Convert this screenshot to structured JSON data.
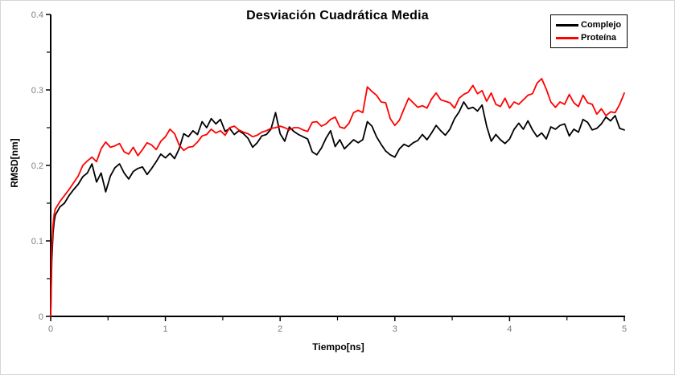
{
  "window": {
    "background": "#ffffff",
    "border_color": "#d5d5d5"
  },
  "chart_data": {
    "type": "line",
    "title": "Desviación Cuadrática Media",
    "xlabel": "Tiempo[ns]",
    "ylabel": "RMSD[nm]",
    "xlim": [
      0,
      5
    ],
    "ylim": [
      0,
      0.4
    ],
    "grid": false,
    "legend_position": "top-right",
    "axis_color": "#000000",
    "tick_label_color": "#7f7f7f",
    "x_ticks": {
      "major": [
        0,
        1,
        2,
        3,
        4,
        5
      ],
      "major_labels": [
        "0",
        "1",
        "2",
        "3",
        "4",
        "5"
      ],
      "minor": [
        0.5,
        1.5,
        2.5,
        3.5,
        4.5
      ]
    },
    "y_ticks": {
      "major": [
        0,
        0.1,
        0.2,
        0.3,
        0.4
      ],
      "major_labels": [
        "0",
        "0.1",
        "0.2",
        "0.3",
        "0.4"
      ],
      "minor": [
        0.05,
        0.15,
        0.25,
        0.35
      ]
    },
    "x_head": [
      0,
      0.005,
      0.01,
      0.02,
      0.03
    ],
    "x_tail_start": 0.04,
    "x_tail_step": 0.04,
    "x_tail_count": 125,
    "series": [
      {
        "name": "Complejo",
        "color": "#000000",
        "values": [
          0,
          0.04,
          0.075,
          0.11,
          0.125,
          0.134,
          0.145,
          0.15,
          0.16,
          0.168,
          0.175,
          0.185,
          0.19,
          0.202,
          0.178,
          0.19,
          0.165,
          0.186,
          0.197,
          0.202,
          0.19,
          0.182,
          0.192,
          0.196,
          0.198,
          0.188,
          0.196,
          0.205,
          0.215,
          0.21,
          0.216,
          0.209,
          0.222,
          0.242,
          0.238,
          0.246,
          0.241,
          0.258,
          0.25,
          0.262,
          0.255,
          0.261,
          0.245,
          0.249,
          0.241,
          0.246,
          0.242,
          0.236,
          0.224,
          0.23,
          0.239,
          0.241,
          0.248,
          0.27,
          0.242,
          0.232,
          0.251,
          0.245,
          0.241,
          0.238,
          0.235,
          0.218,
          0.214,
          0.223,
          0.236,
          0.246,
          0.225,
          0.234,
          0.222,
          0.228,
          0.234,
          0.23,
          0.234,
          0.258,
          0.252,
          0.238,
          0.228,
          0.219,
          0.214,
          0.211,
          0.222,
          0.228,
          0.225,
          0.23,
          0.233,
          0.241,
          0.234,
          0.243,
          0.253,
          0.246,
          0.24,
          0.248,
          0.262,
          0.271,
          0.284,
          0.275,
          0.277,
          0.272,
          0.28,
          0.252,
          0.232,
          0.241,
          0.234,
          0.229,
          0.235,
          0.248,
          0.256,
          0.248,
          0.259,
          0.247,
          0.238,
          0.243,
          0.235,
          0.251,
          0.248,
          0.253,
          0.255,
          0.239,
          0.248,
          0.244,
          0.261,
          0.257,
          0.247,
          0.249,
          0.255,
          0.264,
          0.259,
          0.266,
          0.249,
          0.247
        ]
      },
      {
        "name": "Proteína",
        "color": "#ff0000",
        "values": [
          0,
          0.05,
          0.09,
          0.12,
          0.135,
          0.142,
          0.152,
          0.16,
          0.168,
          0.177,
          0.186,
          0.2,
          0.206,
          0.211,
          0.205,
          0.222,
          0.231,
          0.224,
          0.226,
          0.229,
          0.218,
          0.215,
          0.224,
          0.213,
          0.221,
          0.23,
          0.227,
          0.221,
          0.232,
          0.238,
          0.248,
          0.242,
          0.227,
          0.22,
          0.224,
          0.225,
          0.231,
          0.239,
          0.241,
          0.248,
          0.243,
          0.246,
          0.24,
          0.25,
          0.252,
          0.247,
          0.244,
          0.242,
          0.238,
          0.24,
          0.244,
          0.246,
          0.249,
          0.25,
          0.252,
          0.25,
          0.247,
          0.25,
          0.25,
          0.247,
          0.245,
          0.257,
          0.258,
          0.252,
          0.255,
          0.261,
          0.264,
          0.251,
          0.249,
          0.256,
          0.27,
          0.273,
          0.27,
          0.304,
          0.298,
          0.293,
          0.284,
          0.283,
          0.262,
          0.253,
          0.26,
          0.275,
          0.289,
          0.283,
          0.277,
          0.279,
          0.276,
          0.288,
          0.296,
          0.287,
          0.285,
          0.283,
          0.276,
          0.289,
          0.294,
          0.297,
          0.306,
          0.295,
          0.299,
          0.285,
          0.296,
          0.281,
          0.278,
          0.289,
          0.276,
          0.284,
          0.281,
          0.287,
          0.293,
          0.295,
          0.309,
          0.315,
          0.301,
          0.284,
          0.277,
          0.284,
          0.281,
          0.294,
          0.283,
          0.278,
          0.293,
          0.283,
          0.281,
          0.268,
          0.275,
          0.266,
          0.271,
          0.27,
          0.281,
          0.296
        ]
      }
    ]
  }
}
